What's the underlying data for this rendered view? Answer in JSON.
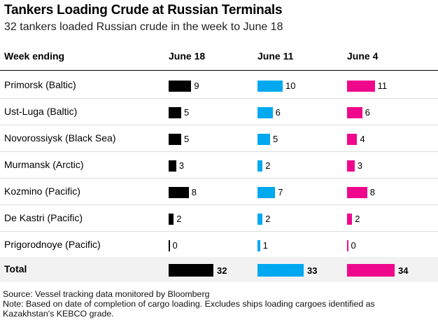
{
  "title": "Tankers Loading Crude at Russian Terminals",
  "subtitle": "32 tankers loaded Russian crude in the week to June 18",
  "chart_data": {
    "type": "table",
    "row_header": "Week ending",
    "columns": [
      {
        "name": "June 18",
        "color": "#000000"
      },
      {
        "name": "June 11",
        "color": "#00a8f0"
      },
      {
        "name": "June 4",
        "color": "#f0088c"
      }
    ],
    "rows": [
      {
        "label": "Primorsk (Baltic)",
        "values": [
          9,
          10,
          11
        ]
      },
      {
        "label": "Ust-Luga (Baltic)",
        "values": [
          5,
          6,
          6
        ]
      },
      {
        "label": "Novorossiysk (Black Sea)",
        "values": [
          5,
          5,
          4
        ]
      },
      {
        "label": "Murmansk (Arctic)",
        "values": [
          3,
          2,
          3
        ]
      },
      {
        "label": "Kozmino (Pacific)",
        "values": [
          8,
          7,
          8
        ]
      },
      {
        "label": "De Kastri (Pacific)",
        "values": [
          2,
          2,
          2
        ]
      },
      {
        "label": "Prigorodnoye (Pacific)",
        "values": [
          0,
          1,
          0
        ]
      }
    ],
    "total": {
      "label": "Total",
      "values": [
        32,
        33,
        34
      ]
    }
  },
  "source": "Source: Vessel tracking data monitored by Bloomberg",
  "note_line1": "Note: Based on date of completion of cargo loading. Excludes ships loading cargoes identified as",
  "note_line2": "Kazakhstan's KEBCO grade."
}
